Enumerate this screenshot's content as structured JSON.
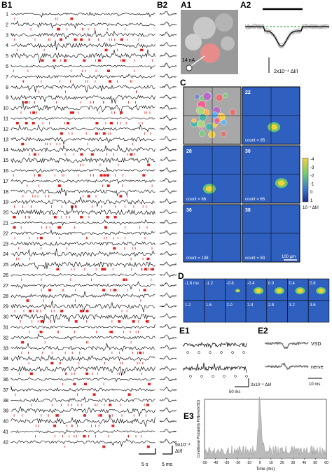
{
  "panels": {
    "B1": {
      "label": "B1",
      "trace_labels": [
        "1",
        "2",
        "3",
        "4",
        "5",
        "6",
        "7",
        "8",
        "9",
        "10",
        "11",
        "12",
        "13",
        "14",
        "15",
        "16",
        "17",
        "18",
        "19",
        "20",
        "21",
        "22",
        "23",
        "24",
        "25",
        "26",
        "27",
        "28",
        "29",
        "30",
        "31",
        "32",
        "33",
        "34",
        "35",
        "36",
        "37",
        "38",
        "39",
        "40",
        "41",
        "42"
      ],
      "time_scale": "5 s"
    },
    "B2": {
      "label": "B2",
      "time_scale": "5 ms",
      "amp_scale": "5x10⁻⁴",
      "amp_unit": "ΔI/I"
    },
    "A1": {
      "label": "A1",
      "current": "14 nA"
    },
    "A2": {
      "label": "A2",
      "amp_scale": "2x10⁻⁴ ΔI/I"
    },
    "C": {
      "label": "C",
      "panels": [
        {
          "cell": "22",
          "count": "count = 95"
        },
        {
          "cell": "28",
          "count": "count = 86"
        },
        {
          "cell": "30",
          "count": "count = 65"
        },
        {
          "cell": "36",
          "count": "count = 138"
        },
        {
          "cell": "38",
          "count": "count = 83"
        }
      ],
      "colorbar_ticks": [
        "-4",
        "-3",
        "-2",
        "-1",
        "0",
        "1"
      ],
      "colorbar_unit": "10⁻⁴ ΔI/I",
      "scale": "100 µm"
    },
    "D": {
      "label": "D",
      "times": [
        "-1.6 ms",
        "-1.2",
        "-0.8",
        "-0.4",
        "0.0",
        "0.4",
        "0.8",
        "1.2",
        "1.6",
        "2.0",
        "2.4",
        "2.8",
        "3.2",
        "3.6"
      ]
    },
    "E1": {
      "label": "E1",
      "time_scale": "50 ms",
      "amp_scale": "2x10⁻⁴ ΔI/I"
    },
    "E2": {
      "label": "E2",
      "trace_labels": [
        "VSD",
        "nerve"
      ],
      "time_scale": "10 ms"
    },
    "E3": {
      "label": "E3",
      "y_label": "Conditional Probability P(Nerve|VSD)",
      "x_label": "Time (ms)",
      "x_ticks": [
        "-50",
        "-40",
        "-30",
        "-20",
        "-10",
        "0",
        "10",
        "20",
        "30",
        "40",
        "50",
        "60"
      ]
    }
  }
}
